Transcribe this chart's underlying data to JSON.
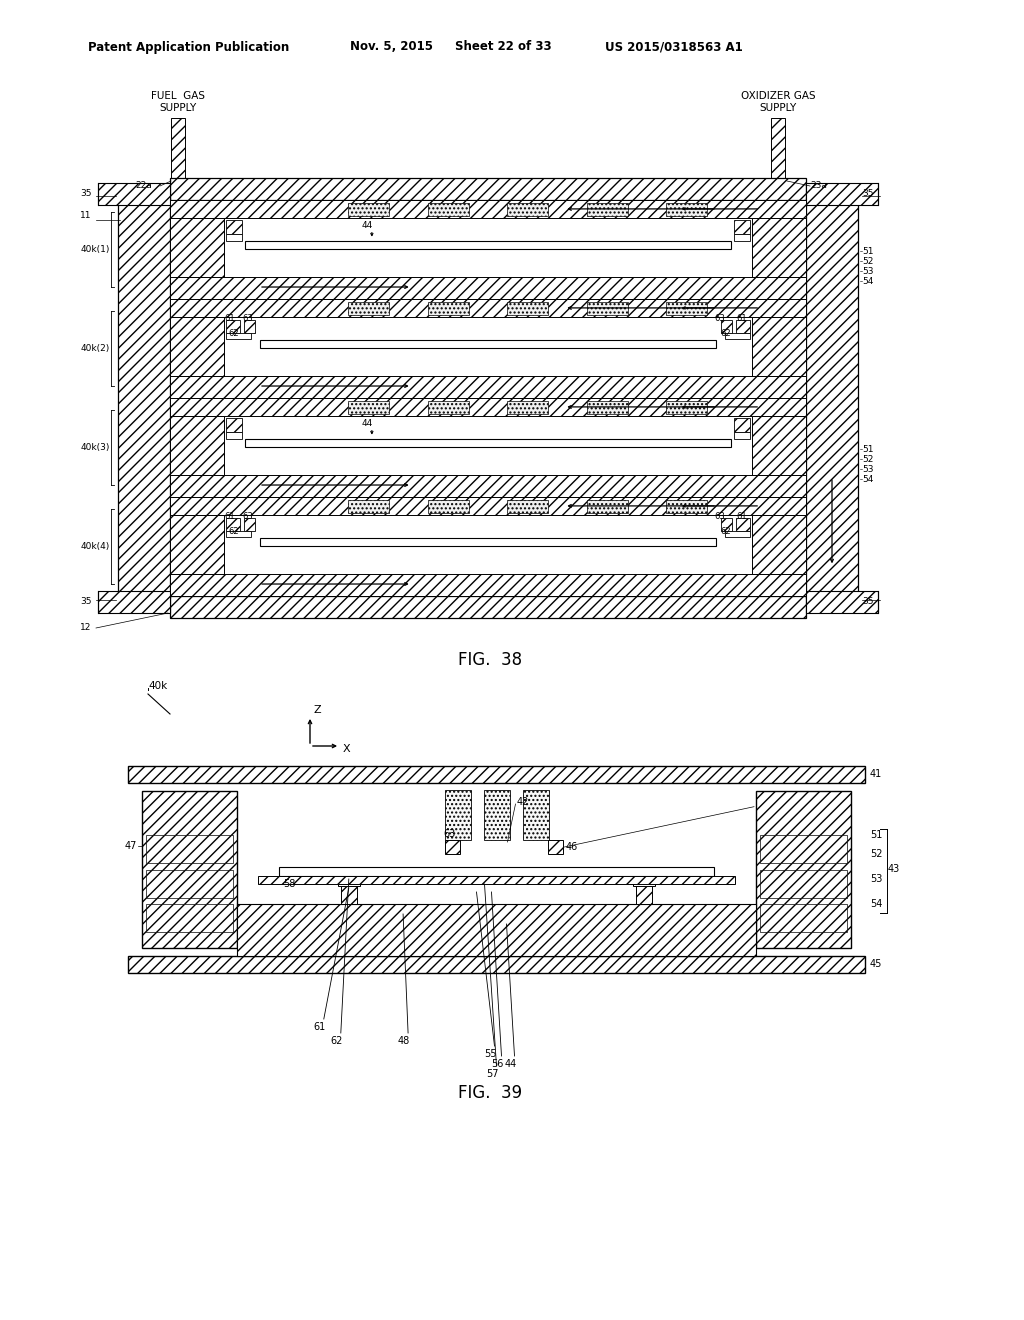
{
  "bg": "#ffffff",
  "lc": "#000000",
  "header1": "Patent Application Publication",
  "header2": "Nov. 5, 2015",
  "header3": "Sheet 22 of 33",
  "header4": "US 2015/0318563 A1",
  "cap38": "FIG.  38",
  "cap39": "FIG.  39",
  "fuel_gas": "FUEL  GAS",
  "fuel_supply": "SUPPLY",
  "ox_gas": "OXIDIZER GAS",
  "ox_supply": "SUPPLY"
}
